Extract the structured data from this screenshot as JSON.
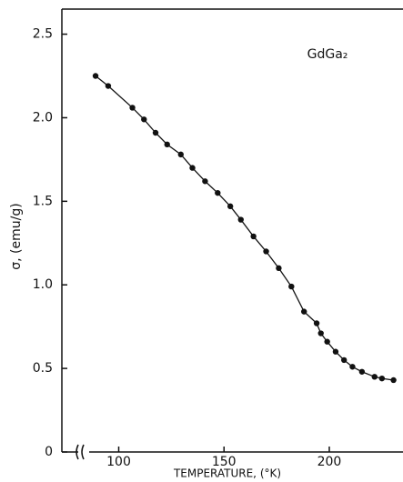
{
  "chart_data": {
    "type": "scatter",
    "annotation": "GdGa₂",
    "xlabel": "TEMPERATURE, (°K)",
    "ylabel": "σ, (emu/g)",
    "x": [
      89,
      95,
      106.5,
      112,
      117.5,
      123,
      129.5,
      135,
      141,
      147,
      153,
      158,
      164,
      170,
      176,
      182,
      188,
      194,
      196,
      199,
      203,
      207,
      211,
      215.5,
      221.5,
      225,
      230.5
    ],
    "series": [
      {
        "color": "#111111",
        "values": [
          2.25,
          2.19,
          2.06,
          1.99,
          1.91,
          1.84,
          1.78,
          1.7,
          1.62,
          1.55,
          1.47,
          1.39,
          1.29,
          1.2,
          1.1,
          0.99,
          0.84,
          0.77,
          0.71,
          0.66,
          0.6,
          0.55,
          0.51,
          0.48,
          0.45,
          0.44,
          0.43
        ]
      }
    ],
    "xlim": [
      73,
      235
    ],
    "ylim": [
      0,
      2.65
    ],
    "xticks": [
      100,
      150,
      200
    ],
    "yticks": [
      0,
      0.5,
      {
        "value": 1,
        "label": "1.0"
      },
      1.5,
      {
        "value": 2,
        "label": "2.0"
      },
      2.5
    ]
  }
}
